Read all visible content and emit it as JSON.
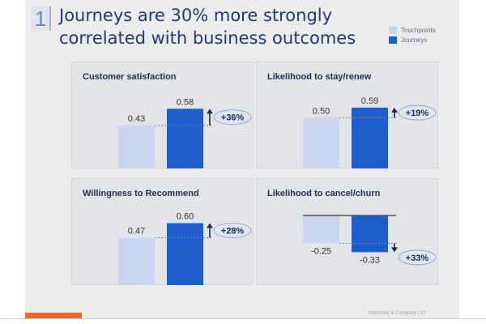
{
  "slide": {
    "number": "1",
    "title_line1": "Journeys are 30% more strongly",
    "title_line2": "correlated with business outcomes",
    "footer": "McKinsey & Company  |  12"
  },
  "legend": [
    {
      "label": "Touchpoints",
      "color": "#c8d6ef"
    },
    {
      "label": "Journeys",
      "color": "#1f5ccc"
    }
  ],
  "colors": {
    "touchpoints": "#c8d6ef",
    "journeys": "#1f5ccc",
    "arrow": "#1b2a4a",
    "badge_fill": "#dde6f5",
    "badge_stroke": "#8ea5cc",
    "accent": "#e8672c"
  },
  "chart_data": [
    {
      "type": "bar",
      "title": "Customer satisfaction",
      "categories": [
        "Touchpoints",
        "Journeys"
      ],
      "values": [
        0.43,
        0.58
      ],
      "value_labels": [
        "0.43",
        "0.58"
      ],
      "change_label": "+36%",
      "change_direction": "up"
    },
    {
      "type": "bar",
      "title": "Likelihood to stay/renew",
      "categories": [
        "Touchpoints",
        "Journeys"
      ],
      "values": [
        0.5,
        0.59
      ],
      "value_labels": [
        "0.50",
        "0.59"
      ],
      "change_label": "+19%",
      "change_direction": "up"
    },
    {
      "type": "bar",
      "title": "Willingness to Recommend",
      "categories": [
        "Touchpoints",
        "Journeys"
      ],
      "values": [
        0.47,
        0.6
      ],
      "value_labels": [
        "0.47",
        "0.60"
      ],
      "change_label": "+28%",
      "change_direction": "up"
    },
    {
      "type": "bar",
      "title": "Likelihood to cancel/churn",
      "categories": [
        "Touchpoints",
        "Journeys"
      ],
      "values": [
        -0.25,
        -0.33
      ],
      "value_labels": [
        "-0.25",
        "-0.33"
      ],
      "change_label": "+33%",
      "change_direction": "down"
    }
  ]
}
